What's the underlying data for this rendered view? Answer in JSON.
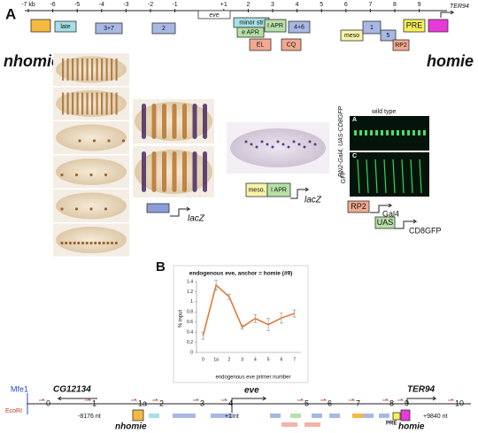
{
  "panel_a": {
    "label": "A",
    "scale_ticks": [
      "-7 kb",
      "-6",
      "-5",
      "-4",
      "-3",
      "-2",
      "-1",
      "+1",
      "2",
      "3",
      "4",
      "5",
      "6",
      "7",
      "8",
      "9"
    ],
    "gene": "eve",
    "neighbor_gene": "TER94",
    "elements": [
      "late",
      "3+7",
      "2",
      "minor str",
      "e APR",
      "I APR",
      "4+6",
      "EL",
      "CQ",
      "meso",
      "1",
      "5",
      "RP2",
      "PRE"
    ],
    "insulators": [
      "nhomie",
      "homie"
    ],
    "reporter_1": "lacZ",
    "reporter_2": {
      "boxes": [
        "meso.",
        "I APR"
      ],
      "gene": "lacZ"
    },
    "gfp_panel": {
      "title": "wild type",
      "genotype": "RN2-Gal4, UAS-CD8GFP",
      "stain": "GFP",
      "sub_labels": [
        "A",
        "C"
      ]
    },
    "driver": [
      "RP2",
      "Gal4",
      "UAS",
      "CD8GFP"
    ]
  },
  "panel_b_label": "B",
  "chart_data": {
    "type": "line",
    "title": "endogenous eve, anchor = homie (#9)",
    "x_label": "endogenous eve primer number",
    "y_label": "% input",
    "categories": [
      "0",
      "1a",
      "2",
      "3",
      "4",
      "5",
      "6",
      "7"
    ],
    "series": [
      {
        "values": [
          0.33,
          1.33,
          1.1,
          0.5,
          0.67,
          0.55,
          0.68,
          0.77
        ],
        "errors": [
          0.07,
          0.1,
          0.05,
          0.04,
          0.08,
          0.12,
          0.1,
          0.07
        ],
        "color": "#e07b39"
      }
    ],
    "ylim": [
      0,
      1.4
    ],
    "yticks": [
      0,
      0.2,
      0.4,
      0.6,
      0.8,
      1,
      1.2,
      1.4
    ]
  },
  "map": {
    "sites": [
      "Mfe1",
      "EcoRI"
    ],
    "genes": [
      "CG12134",
      "eve",
      "TER94"
    ],
    "primers": [
      "0",
      "1",
      "1a",
      "2",
      "3",
      "4",
      "5",
      "6",
      "7",
      "8",
      "9",
      "10"
    ],
    "coordinates": [
      "-8176 nt",
      "+1 nt",
      "+9840 nt"
    ],
    "insulators": [
      "nhomie",
      "homie"
    ],
    "pre": "PRE"
  }
}
